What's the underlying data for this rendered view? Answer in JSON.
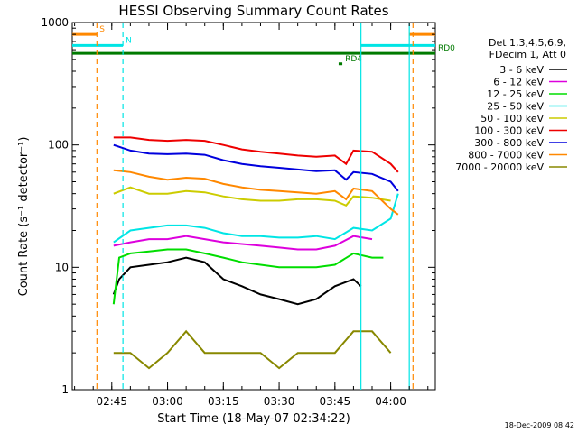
{
  "chart_data": {
    "type": "line",
    "title": "HESSI Observing Summary Count Rates",
    "xlabel": "Start Time (18-May-07 02:34:22)",
    "ylabel": "Count Rate (s⁻¹ detector⁻¹)",
    "y_scale": "log",
    "xlim": [
      "02:34:22",
      "04:12"
    ],
    "ylim": [
      1,
      1000
    ],
    "x_ticks": [
      "02:45",
      "03:00",
      "03:15",
      "03:30",
      "03:45",
      "04:00"
    ],
    "y_ticks": [
      "1",
      "10",
      "100",
      "1000"
    ],
    "grid": false,
    "legend": {
      "placement": "right",
      "header": [
        "Det 1,3,4,5,6,9,",
        "FDecim 1, Att 0"
      ]
    },
    "series": [
      {
        "name": "3 - 6 keV",
        "color": "#000000",
        "points": [
          [
            "02:45:30",
            6
          ],
          [
            "02:47",
            8
          ],
          [
            "02:50",
            10
          ],
          [
            "02:55",
            10.5
          ],
          [
            "03:00",
            11
          ],
          [
            "03:05",
            12
          ],
          [
            "03:10",
            11
          ],
          [
            "03:15",
            8
          ],
          [
            "03:20",
            7
          ],
          [
            "03:25",
            6
          ],
          [
            "03:30",
            5.5
          ],
          [
            "03:35",
            5
          ],
          [
            "03:40",
            5.5
          ],
          [
            "03:45",
            7
          ],
          [
            "03:50",
            8
          ],
          [
            "03:52",
            7
          ]
        ]
      },
      {
        "name": "6 - 12 keV",
        "color": "#dd00dd",
        "points": [
          [
            "02:45:30",
            15
          ],
          [
            "02:50",
            16
          ],
          [
            "02:55",
            17
          ],
          [
            "03:00",
            17
          ],
          [
            "03:05",
            18
          ],
          [
            "03:10",
            17
          ],
          [
            "03:15",
            16
          ],
          [
            "03:20",
            15.5
          ],
          [
            "03:25",
            15
          ],
          [
            "03:30",
            14.5
          ],
          [
            "03:35",
            14
          ],
          [
            "03:40",
            14
          ],
          [
            "03:45",
            15
          ],
          [
            "03:50",
            18
          ],
          [
            "03:55",
            17
          ]
        ]
      },
      {
        "name": "12 - 25 keV",
        "color": "#00dd00",
        "points": [
          [
            "02:45:30",
            5
          ],
          [
            "02:47",
            12
          ],
          [
            "02:50",
            13
          ],
          [
            "02:55",
            13.5
          ],
          [
            "03:00",
            14
          ],
          [
            "03:05",
            14
          ],
          [
            "03:10",
            13
          ],
          [
            "03:15",
            12
          ],
          [
            "03:20",
            11
          ],
          [
            "03:25",
            10.5
          ],
          [
            "03:30",
            10
          ],
          [
            "03:35",
            10
          ],
          [
            "03:40",
            10
          ],
          [
            "03:45",
            10.5
          ],
          [
            "03:50",
            13
          ],
          [
            "03:55",
            12
          ],
          [
            "03:58",
            12
          ]
        ]
      },
      {
        "name": "25 - 50 keV",
        "color": "#00e5e5",
        "points": [
          [
            "02:45:30",
            16
          ],
          [
            "02:50",
            20
          ],
          [
            "02:55",
            21
          ],
          [
            "03:00",
            22
          ],
          [
            "03:05",
            22
          ],
          [
            "03:10",
            21
          ],
          [
            "03:15",
            19
          ],
          [
            "03:20",
            18
          ],
          [
            "03:25",
            18
          ],
          [
            "03:30",
            17.5
          ],
          [
            "03:35",
            17.5
          ],
          [
            "03:40",
            18
          ],
          [
            "03:45",
            17
          ],
          [
            "03:50",
            21
          ],
          [
            "03:55",
            20
          ],
          [
            "04:00",
            25
          ],
          [
            "04:02",
            40
          ]
        ]
      },
      {
        "name": "50 - 100 keV",
        "color": "#cccc00",
        "points": [
          [
            "02:45:30",
            40
          ],
          [
            "02:50",
            45
          ],
          [
            "02:55",
            40
          ],
          [
            "03:00",
            40
          ],
          [
            "03:05",
            42
          ],
          [
            "03:10",
            41
          ],
          [
            "03:15",
            38
          ],
          [
            "03:20",
            36
          ],
          [
            "03:25",
            35
          ],
          [
            "03:30",
            35
          ],
          [
            "03:35",
            36
          ],
          [
            "03:40",
            36
          ],
          [
            "03:45",
            35
          ],
          [
            "03:48",
            32
          ],
          [
            "03:50",
            38
          ],
          [
            "03:55",
            37
          ],
          [
            "04:00",
            35
          ]
        ]
      },
      {
        "name": "100 - 300 keV",
        "color": "#ee0000",
        "points": [
          [
            "02:45:30",
            115
          ],
          [
            "02:50",
            115
          ],
          [
            "02:55",
            110
          ],
          [
            "03:00",
            108
          ],
          [
            "03:05",
            110
          ],
          [
            "03:10",
            108
          ],
          [
            "03:15",
            100
          ],
          [
            "03:20",
            92
          ],
          [
            "03:25",
            88
          ],
          [
            "03:30",
            85
          ],
          [
            "03:35",
            82
          ],
          [
            "03:40",
            80
          ],
          [
            "03:45",
            82
          ],
          [
            "03:48",
            70
          ],
          [
            "03:50",
            90
          ],
          [
            "03:55",
            88
          ],
          [
            "04:00",
            70
          ],
          [
            "04:02",
            60
          ]
        ]
      },
      {
        "name": "300 - 800 keV",
        "color": "#0000dd",
        "points": [
          [
            "02:45:30",
            100
          ],
          [
            "02:50",
            90
          ],
          [
            "02:55",
            85
          ],
          [
            "03:00",
            84
          ],
          [
            "03:05",
            85
          ],
          [
            "03:10",
            83
          ],
          [
            "03:15",
            75
          ],
          [
            "03:20",
            70
          ],
          [
            "03:25",
            67
          ],
          [
            "03:30",
            65
          ],
          [
            "03:35",
            63
          ],
          [
            "03:40",
            61
          ],
          [
            "03:45",
            62
          ],
          [
            "03:48",
            52
          ],
          [
            "03:50",
            60
          ],
          [
            "03:55",
            58
          ],
          [
            "04:00",
            50
          ],
          [
            "04:02",
            42
          ]
        ]
      },
      {
        "name": "800 - 7000 keV",
        "color": "#ff8800",
        "points": [
          [
            "02:45:30",
            62
          ],
          [
            "02:50",
            60
          ],
          [
            "02:55",
            55
          ],
          [
            "03:00",
            52
          ],
          [
            "03:05",
            54
          ],
          [
            "03:10",
            53
          ],
          [
            "03:15",
            48
          ],
          [
            "03:20",
            45
          ],
          [
            "03:25",
            43
          ],
          [
            "03:30",
            42
          ],
          [
            "03:35",
            41
          ],
          [
            "03:40",
            40
          ],
          [
            "03:45",
            42
          ],
          [
            "03:48",
            36
          ],
          [
            "03:50",
            44
          ],
          [
            "03:55",
            42
          ],
          [
            "04:00",
            30
          ],
          [
            "04:02",
            27
          ]
        ]
      },
      {
        "name": "7000 - 20000 keV",
        "color": "#888800",
        "points": [
          [
            "02:45:30",
            2
          ],
          [
            "02:50",
            2
          ],
          [
            "02:55",
            1.5
          ],
          [
            "03:00",
            2
          ],
          [
            "03:05",
            3
          ],
          [
            "03:10",
            2
          ],
          [
            "03:15",
            2
          ],
          [
            "03:20",
            2
          ],
          [
            "03:25",
            2
          ],
          [
            "03:30",
            1.5
          ],
          [
            "03:35",
            2
          ],
          [
            "03:40",
            2
          ],
          [
            "03:45",
            2
          ],
          [
            "03:50",
            3
          ],
          [
            "03:55",
            3
          ],
          [
            "04:00",
            2
          ]
        ]
      }
    ],
    "bars": [
      {
        "label": "S",
        "color": "#ff8800",
        "level": 800,
        "segments": [
          [
            "02:34:22",
            "02:41"
          ],
          [
            "04:05",
            "04:12"
          ]
        ]
      },
      {
        "label": "N",
        "color": "#00e5e5",
        "level": 650,
        "segments": [
          [
            "02:34:22",
            "02:48"
          ],
          [
            "03:52",
            "04:12"
          ]
        ]
      },
      {
        "label": "RD0",
        "color": "#007a00",
        "level": 560,
        "segments": [
          [
            "02:34:22",
            "04:12"
          ]
        ]
      },
      {
        "label": "RD4",
        "color": "#007a00",
        "level": 460,
        "segments": [
          [
            "03:46",
            "03:47"
          ]
        ]
      }
    ],
    "vlines": [
      {
        "color": "#ff8800",
        "time": "02:41",
        "dash": true
      },
      {
        "color": "#00e5e5",
        "time": "02:48",
        "dash": true
      },
      {
        "color": "#00e5e5",
        "time": "03:52",
        "dash": false
      },
      {
        "color": "#00e5e5",
        "time": "04:05",
        "dash": false
      },
      {
        "color": "#ff8800",
        "time": "04:06",
        "dash": true
      }
    ]
  },
  "footer": {
    "timestamp": "18-Dec-2009 08:42"
  }
}
